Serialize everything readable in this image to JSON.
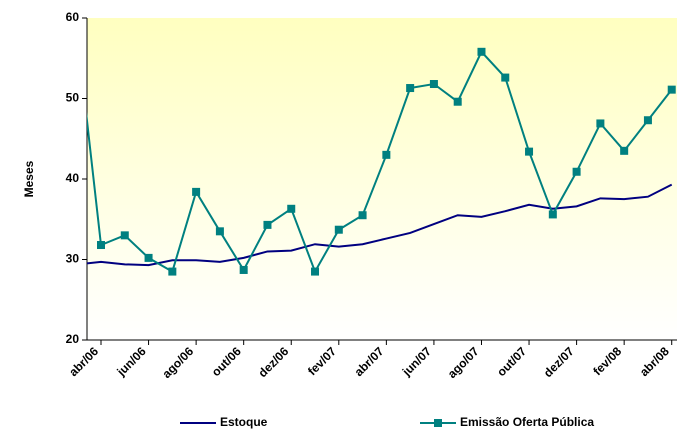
{
  "chart_data": {
    "type": "line",
    "y_label": "Meses",
    "categories": [
      null,
      "abr/06",
      null,
      "jun/06",
      null,
      "ago/06",
      null,
      "out/06",
      null,
      "dez/06",
      null,
      "fev/07",
      null,
      "abr/07",
      null,
      "jun/07",
      null,
      "ago/07",
      null,
      "out/07",
      null,
      "dez/07",
      null,
      "fev/08",
      null,
      "abr/08"
    ],
    "series": [
      {
        "name": "Estoque",
        "color": "#000080",
        "marker": false,
        "values": [
          29.4,
          29.7,
          29.4,
          29.3,
          29.9,
          29.9,
          29.7,
          30.2,
          31.0,
          31.1,
          31.9,
          31.6,
          31.9,
          32.6,
          33.3,
          34.4,
          35.5,
          35.3,
          36.0,
          36.8,
          36.3,
          36.6,
          37.6,
          37.5,
          37.8,
          39.3
        ]
      },
      {
        "name": "Emissão Oferta Pública",
        "color": "#008080",
        "marker": true,
        "values": [
          58,
          31.8,
          33.0,
          30.2,
          28.5,
          38.4,
          33.5,
          28.7,
          34.3,
          36.3,
          28.5,
          33.7,
          35.5,
          43.0,
          51.3,
          51.8,
          49.6,
          55.8,
          52.6,
          43.4,
          35.6,
          40.9,
          46.9,
          43.5,
          47.3,
          51.1
        ]
      }
    ],
    "ylim": [
      20,
      60
    ],
    "yticks": [
      20,
      30,
      40,
      50,
      60
    ],
    "grid": false,
    "background": [
      "#ffffc0",
      "#ffffff"
    ],
    "legend": "bottom"
  }
}
